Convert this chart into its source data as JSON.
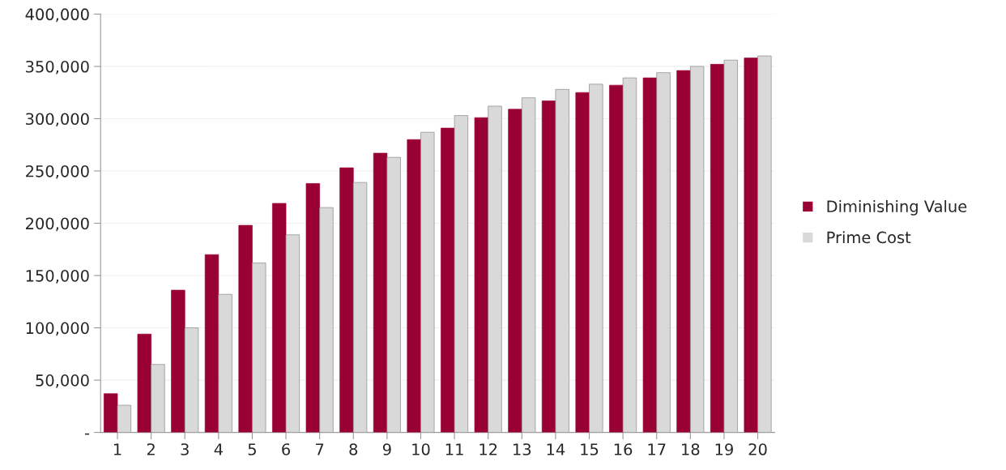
{
  "chart_data": {
    "type": "bar",
    "categories": [
      "1",
      "2",
      "3",
      "4",
      "5",
      "6",
      "7",
      "8",
      "9",
      "10",
      "11",
      "12",
      "13",
      "14",
      "15",
      "16",
      "17",
      "18",
      "19",
      "20"
    ],
    "series": [
      {
        "name": "Diminishing Value",
        "color": "#990033",
        "values": [
          37000,
          94000,
          136000,
          170000,
          198000,
          219000,
          238000,
          253000,
          267000,
          280000,
          291000,
          301000,
          309000,
          317000,
          325000,
          332000,
          339000,
          346000,
          352000,
          358000
        ]
      },
      {
        "name": "Prime Cost",
        "color": "#d9d9d9",
        "values": [
          26000,
          65000,
          100000,
          132000,
          162000,
          189000,
          215000,
          239000,
          263000,
          287000,
          303000,
          312000,
          320000,
          328000,
          333000,
          339000,
          344000,
          350000,
          356000,
          360000
        ]
      }
    ],
    "ylim": [
      0,
      400000
    ],
    "yticks": [
      {
        "value": 0,
        "label": "-"
      },
      {
        "value": 50000,
        "label": "50,000"
      },
      {
        "value": 100000,
        "label": "100,000"
      },
      {
        "value": 150000,
        "label": "150,000"
      },
      {
        "value": 200000,
        "label": "200,000"
      },
      {
        "value": 250000,
        "label": "250,000"
      },
      {
        "value": 300000,
        "label": "300,000"
      },
      {
        "value": 350000,
        "label": "350,000"
      },
      {
        "value": 400000,
        "label": "400,000"
      }
    ],
    "grid": "y",
    "legend": "right"
  }
}
